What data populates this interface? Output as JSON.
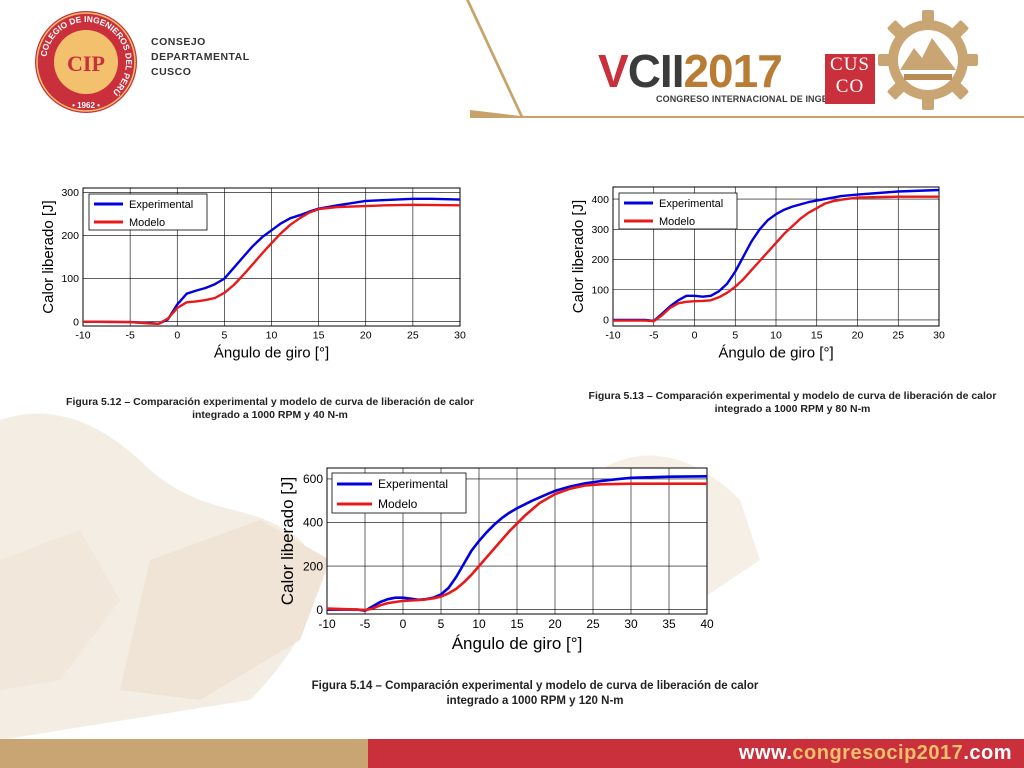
{
  "header": {
    "consejo_lines": [
      "CONSEJO",
      "DEPARTAMENTAL",
      "CUSCO"
    ],
    "cip_logo": {
      "ring_text": "COLEGIO DE INGENIEROS DEL PERÚ",
      "year": "• 1962 •",
      "monogram": "CIP"
    },
    "event": {
      "v": "V",
      "cii": "CII",
      "year": "2017",
      "subtitle": "CONGRESO INTERNACIONAL DE INGENIERÍA",
      "cusco_line1": "CUS",
      "cusco_line2": "CO"
    }
  },
  "colors": {
    "experimental": "#0000e0",
    "modelo": "#e81919",
    "brand_red": "#c9303b",
    "brand_gold": "#c9a574"
  },
  "chart_data": [
    {
      "type": "line",
      "xlabel": "Ángulo de giro [°]",
      "ylabel": "Calor liberado [J]",
      "xlim": [
        -10,
        30
      ],
      "ylim": [
        -10,
        310
      ],
      "xticks": [
        "-10",
        "-5",
        "0",
        "5",
        "10",
        "15",
        "20",
        "25",
        "30"
      ],
      "yticks": [
        "0",
        "100",
        "200",
        "300"
      ],
      "grid": true,
      "legend_position": "top-left",
      "caption": [
        "Figura 5.12 – Comparación experimental y  modelo de curva de liberación de calor",
        "integrado a 1000 RPM y 40 N-m"
      ],
      "series": [
        {
          "name": "Experimental",
          "color": "#0000e0",
          "points": [
            [
              -10,
              0
            ],
            [
              -5,
              -1
            ],
            [
              -3,
              -3
            ],
            [
              -2,
              -5
            ],
            [
              -1,
              5
            ],
            [
              0,
              40
            ],
            [
              1,
              65
            ],
            [
              2,
              72
            ],
            [
              3,
              78
            ],
            [
              4,
              87
            ],
            [
              5,
              100
            ],
            [
              6,
              125
            ],
            [
              7,
              150
            ],
            [
              8,
              175
            ],
            [
              9,
              196
            ],
            [
              10,
              212
            ],
            [
              11,
              228
            ],
            [
              12,
              240
            ],
            [
              13,
              247
            ],
            [
              14,
              255
            ],
            [
              15,
              262
            ],
            [
              17,
              270
            ],
            [
              20,
              280
            ],
            [
              22,
              282
            ],
            [
              25,
              285
            ],
            [
              27,
              285
            ],
            [
              30,
              283
            ]
          ]
        },
        {
          "name": "Modelo",
          "color": "#e81919",
          "points": [
            [
              -10,
              0
            ],
            [
              -5,
              -1
            ],
            [
              -3,
              -4
            ],
            [
              -2,
              -5
            ],
            [
              -1,
              7
            ],
            [
              0,
              32
            ],
            [
              1,
              45
            ],
            [
              2,
              47
            ],
            [
              3,
              50
            ],
            [
              4,
              55
            ],
            [
              5,
              67
            ],
            [
              6,
              85
            ],
            [
              7,
              108
            ],
            [
              8,
              133
            ],
            [
              9,
              158
            ],
            [
              10,
              182
            ],
            [
              11,
              205
            ],
            [
              12,
              225
            ],
            [
              13,
              240
            ],
            [
              14,
              253
            ],
            [
              15,
              261
            ],
            [
              17,
              266
            ],
            [
              20,
              268
            ],
            [
              22,
              270
            ],
            [
              25,
              271
            ],
            [
              30,
              270
            ]
          ]
        }
      ]
    },
    {
      "type": "line",
      "xlabel": "Ángulo de giro [°]",
      "ylabel": "Calor liberado [J]",
      "xlim": [
        -10,
        30
      ],
      "ylim": [
        -20,
        440
      ],
      "xticks": [
        "-10",
        "-5",
        "0",
        "5",
        "10",
        "15",
        "20",
        "25",
        "30"
      ],
      "yticks": [
        "0",
        "100",
        "200",
        "300",
        "400"
      ],
      "grid": true,
      "legend_position": "top-left",
      "caption": [
        "Figura 5.13 – Comparación experimental y  modelo de curva de liberación de calor",
        "integrado a 1000 RPM y 80 N-m"
      ],
      "series": [
        {
          "name": "Experimental",
          "color": "#0000e0",
          "points": [
            [
              -10,
              0
            ],
            [
              -6,
              0
            ],
            [
              -5,
              -3
            ],
            [
              -4,
              20
            ],
            [
              -3,
              45
            ],
            [
              -2,
              65
            ],
            [
              -1,
              80
            ],
            [
              0,
              80
            ],
            [
              1,
              77
            ],
            [
              2,
              80
            ],
            [
              3,
              95
            ],
            [
              4,
              120
            ],
            [
              5,
              160
            ],
            [
              6,
              210
            ],
            [
              7,
              260
            ],
            [
              8,
              300
            ],
            [
              9,
              330
            ],
            [
              10,
              350
            ],
            [
              11,
              365
            ],
            [
              12,
              375
            ],
            [
              14,
              390
            ],
            [
              16,
              400
            ],
            [
              18,
              410
            ],
            [
              20,
              415
            ],
            [
              25,
              425
            ],
            [
              30,
              430
            ]
          ]
        },
        {
          "name": "Modelo",
          "color": "#e81919",
          "points": [
            [
              -10,
              -2
            ],
            [
              -6,
              -2
            ],
            [
              -5,
              -4
            ],
            [
              -4,
              15
            ],
            [
              -3,
              40
            ],
            [
              -2,
              55
            ],
            [
              -1,
              60
            ],
            [
              0,
              62
            ],
            [
              1,
              63
            ],
            [
              2,
              65
            ],
            [
              3,
              75
            ],
            [
              4,
              90
            ],
            [
              5,
              110
            ],
            [
              6,
              135
            ],
            [
              7,
              165
            ],
            [
              8,
              195
            ],
            [
              9,
              225
            ],
            [
              10,
              255
            ],
            [
              11,
              285
            ],
            [
              12,
              310
            ],
            [
              13,
              335
            ],
            [
              14,
              355
            ],
            [
              15,
              370
            ],
            [
              16,
              385
            ],
            [
              17,
              393
            ],
            [
              18,
              398
            ],
            [
              20,
              405
            ],
            [
              25,
              408
            ],
            [
              30,
              408
            ]
          ]
        }
      ]
    },
    {
      "type": "line",
      "xlabel": "Ángulo de giro [°]",
      "ylabel": "Calor liberado [J]",
      "xlim": [
        -10,
        40
      ],
      "ylim": [
        -20,
        650
      ],
      "xticks": [
        "-10",
        "-5",
        "0",
        "5",
        "10",
        "15",
        "20",
        "25",
        "30",
        "35",
        "40"
      ],
      "yticks": [
        "0",
        "200",
        "400",
        "600"
      ],
      "grid": true,
      "legend_position": "top-left",
      "caption": [
        "Figura 5.14 – Comparación experimental y  modelo de curva de liberación de calor",
        "integrado a 1000 RPM y 120 N-m"
      ],
      "series": [
        {
          "name": "Experimental",
          "color": "#0000e0",
          "points": [
            [
              -10,
              0
            ],
            [
              -6,
              0
            ],
            [
              -5,
              -5
            ],
            [
              -4,
              15
            ],
            [
              -3,
              35
            ],
            [
              -2,
              48
            ],
            [
              -1,
              55
            ],
            [
              0,
              55
            ],
            [
              1,
              50
            ],
            [
              2,
              45
            ],
            [
              3,
              48
            ],
            [
              4,
              55
            ],
            [
              5,
              70
            ],
            [
              6,
              100
            ],
            [
              7,
              150
            ],
            [
              8,
              210
            ],
            [
              9,
              270
            ],
            [
              10,
              315
            ],
            [
              11,
              355
            ],
            [
              12,
              390
            ],
            [
              13,
              420
            ],
            [
              14,
              445
            ],
            [
              15,
              465
            ],
            [
              17,
              500
            ],
            [
              19,
              530
            ],
            [
              20,
              545
            ],
            [
              22,
              565
            ],
            [
              24,
              580
            ],
            [
              26,
              590
            ],
            [
              28,
              598
            ],
            [
              30,
              605
            ],
            [
              35,
              610
            ],
            [
              40,
              612
            ]
          ]
        },
        {
          "name": "Modelo",
          "color": "#e81919",
          "points": [
            [
              -10,
              5
            ],
            [
              -6,
              0
            ],
            [
              -5,
              -2
            ],
            [
              -4,
              5
            ],
            [
              -3,
              20
            ],
            [
              -2,
              30
            ],
            [
              -1,
              35
            ],
            [
              0,
              40
            ],
            [
              1,
              42
            ],
            [
              2,
              44
            ],
            [
              3,
              47
            ],
            [
              4,
              52
            ],
            [
              5,
              60
            ],
            [
              6,
              75
            ],
            [
              7,
              95
            ],
            [
              8,
              125
            ],
            [
              9,
              160
            ],
            [
              10,
              200
            ],
            [
              11,
              240
            ],
            [
              12,
              280
            ],
            [
              13,
              320
            ],
            [
              14,
              360
            ],
            [
              15,
              395
            ],
            [
              16,
              430
            ],
            [
              17,
              460
            ],
            [
              18,
              490
            ],
            [
              19,
              510
            ],
            [
              20,
              530
            ],
            [
              22,
              555
            ],
            [
              24,
              570
            ],
            [
              26,
              575
            ],
            [
              30,
              578
            ],
            [
              35,
              578
            ],
            [
              40,
              578
            ]
          ]
        }
      ]
    }
  ],
  "footer": {
    "url_prefix": "www.",
    "url_middle": "congresocip2017",
    "url_suffix": ".com"
  }
}
